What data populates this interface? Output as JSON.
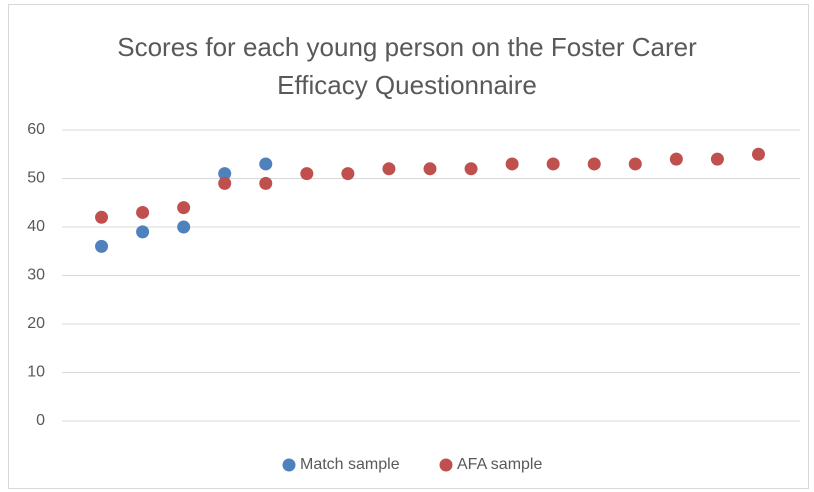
{
  "chart_data": {
    "type": "scatter",
    "title": "Scores for each young person on the Foster Carer Efficacy Questionnaire",
    "categories": [
      null,
      null,
      null,
      null,
      null,
      null,
      null,
      null,
      null,
      null,
      null,
      null,
      null,
      null,
      null,
      null,
      null
    ],
    "series": [
      {
        "name": "Match sample",
        "color": "#4f81bd",
        "values": [
          36,
          39,
          40,
          51,
          53,
          null,
          null,
          null,
          null,
          null,
          null,
          null,
          null,
          null,
          null,
          null,
          null
        ]
      },
      {
        "name": "AFA sample",
        "color": "#c0504d",
        "values": [
          42,
          43,
          44,
          49,
          49,
          51,
          51,
          52,
          52,
          52,
          53,
          53,
          53,
          53,
          54,
          54,
          55
        ]
      }
    ],
    "ylim": [
      0,
      60
    ],
    "yticks": [
      0,
      10,
      20,
      30,
      40,
      50,
      60
    ],
    "grid": true,
    "legend": "bottom"
  }
}
